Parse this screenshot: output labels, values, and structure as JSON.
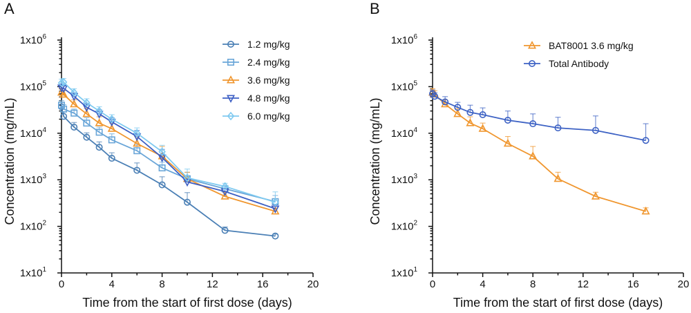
{
  "chart_data": [
    {
      "type": "line",
      "panel_label": "A",
      "xlabel": "Time from the start of first dose (days)",
      "ylabel": "Concentration (mg/mL)",
      "yscale": "log",
      "xlim": [
        0,
        20
      ],
      "ylim": [
        10,
        1000000
      ],
      "xticks": [
        0,
        4,
        8,
        12,
        16,
        20
      ],
      "ytick_labels": [
        {
          "value": 10,
          "base": "1x10",
          "exp": "1"
        },
        {
          "value": 100,
          "base": "1x10",
          "exp": "2"
        },
        {
          "value": 1000,
          "base": "1x10",
          "exp": "3"
        },
        {
          "value": 10000,
          "base": "1x10",
          "exp": "4"
        },
        {
          "value": 100000,
          "base": "1x10",
          "exp": "5"
        },
        {
          "value": 1000000,
          "base": "1x10",
          "exp": "6"
        }
      ],
      "grid": false,
      "legend_position": "top-right",
      "series": [
        {
          "name": "1.2 mg/kg",
          "color": "#4a7fb5",
          "marker": "circle",
          "x": [
            0,
            0.17,
            1,
            2,
            3,
            4,
            6,
            8,
            10,
            13,
            17
          ],
          "y": [
            37000,
            23000,
            13500,
            8200,
            5000,
            2900,
            1600,
            780,
            330,
            82,
            62
          ],
          "err": [
            9000,
            6000,
            3500,
            2000,
            1500,
            900,
            700,
            380,
            200,
            15,
            6
          ]
        },
        {
          "name": "2.4 mg/kg",
          "color": "#6aa6d8",
          "marker": "square",
          "x": [
            0,
            0.17,
            1,
            2,
            3,
            4,
            6,
            8,
            10,
            13,
            17
          ],
          "y": [
            40000,
            33000,
            27000,
            16500,
            10500,
            7200,
            4200,
            1800,
            1050,
            640,
            340
          ],
          "err": [
            10000,
            8000,
            6000,
            5000,
            3000,
            2500,
            1500,
            600,
            400,
            100,
            120
          ]
        },
        {
          "name": "3.6 mg/kg",
          "color": "#f0962e",
          "marker": "triangle-up",
          "x": [
            0,
            0.17,
            1,
            2,
            3,
            4,
            6,
            8,
            10,
            13,
            17
          ],
          "y": [
            75000,
            68000,
            42000,
            26000,
            16500,
            12500,
            6000,
            3200,
            1050,
            440,
            210
          ],
          "err": [
            15000,
            14000,
            10000,
            8000,
            6000,
            4000,
            2500,
            2000,
            400,
            100,
            40
          ]
        },
        {
          "name": "4.8 mg/kg",
          "color": "#3d5fc4",
          "marker": "triangle-down",
          "x": [
            0,
            0.17,
            1,
            2,
            3,
            4,
            6,
            8,
            10,
            13,
            17
          ],
          "y": [
            95000,
            92000,
            62000,
            36000,
            26000,
            17500,
            8500,
            3000,
            900,
            560,
            240
          ],
          "err": [
            20000,
            18000,
            12000,
            8000,
            6000,
            4000,
            3000,
            1500,
            300,
            100,
            50
          ]
        },
        {
          "name": "6.0 mg/kg",
          "color": "#7fcaf0",
          "marker": "diamond",
          "x": [
            0,
            0.17,
            1,
            2,
            3,
            4,
            6,
            8,
            10,
            13,
            17
          ],
          "y": [
            120000,
            125000,
            75000,
            45000,
            30000,
            20000,
            10000,
            4000,
            1100,
            720,
            330
          ],
          "err": [
            25000,
            25000,
            15000,
            10000,
            7000,
            5000,
            3000,
            1500,
            600,
            120,
            220
          ]
        }
      ]
    },
    {
      "type": "line",
      "panel_label": "B",
      "xlabel": "Time from the start of first dose (days)",
      "ylabel": "Concentration (mg/mL)",
      "yscale": "log",
      "xlim": [
        0,
        20
      ],
      "ylim": [
        10,
        1000000
      ],
      "xticks": [
        0,
        4,
        8,
        12,
        16,
        20
      ],
      "ytick_labels": [
        {
          "value": 10,
          "base": "1x10",
          "exp": "1"
        },
        {
          "value": 100,
          "base": "1x10",
          "exp": "2"
        },
        {
          "value": 1000,
          "base": "1x10",
          "exp": "3"
        },
        {
          "value": 10000,
          "base": "1x10",
          "exp": "4"
        },
        {
          "value": 100000,
          "base": "1x10",
          "exp": "5"
        },
        {
          "value": 1000000,
          "base": "1x10",
          "exp": "6"
        }
      ],
      "grid": false,
      "legend_position": "top-right",
      "series": [
        {
          "name": "BAT8001 3.6 mg/kg",
          "color": "#f0962e",
          "marker": "triangle-up",
          "x": [
            0,
            0.17,
            1,
            2,
            3,
            4,
            6,
            8,
            10,
            13,
            17
          ],
          "y": [
            75000,
            68000,
            42000,
            26000,
            16500,
            12500,
            6000,
            3200,
            1050,
            440,
            210
          ],
          "err": [
            15000,
            14000,
            10000,
            8000,
            6000,
            4000,
            2500,
            2000,
            400,
            100,
            40
          ]
        },
        {
          "name": "Total Antibody",
          "color": "#3d62c4",
          "marker": "circle",
          "x": [
            0,
            0.17,
            1,
            2,
            3,
            4,
            6,
            8,
            10,
            13,
            17
          ],
          "y": [
            70000,
            62000,
            47000,
            36000,
            28000,
            25000,
            19000,
            16000,
            13000,
            11500,
            7000
          ],
          "err": [
            15000,
            12000,
            14000,
            10000,
            12000,
            10000,
            11000,
            10000,
            9000,
            12000,
            9000
          ]
        }
      ]
    }
  ]
}
